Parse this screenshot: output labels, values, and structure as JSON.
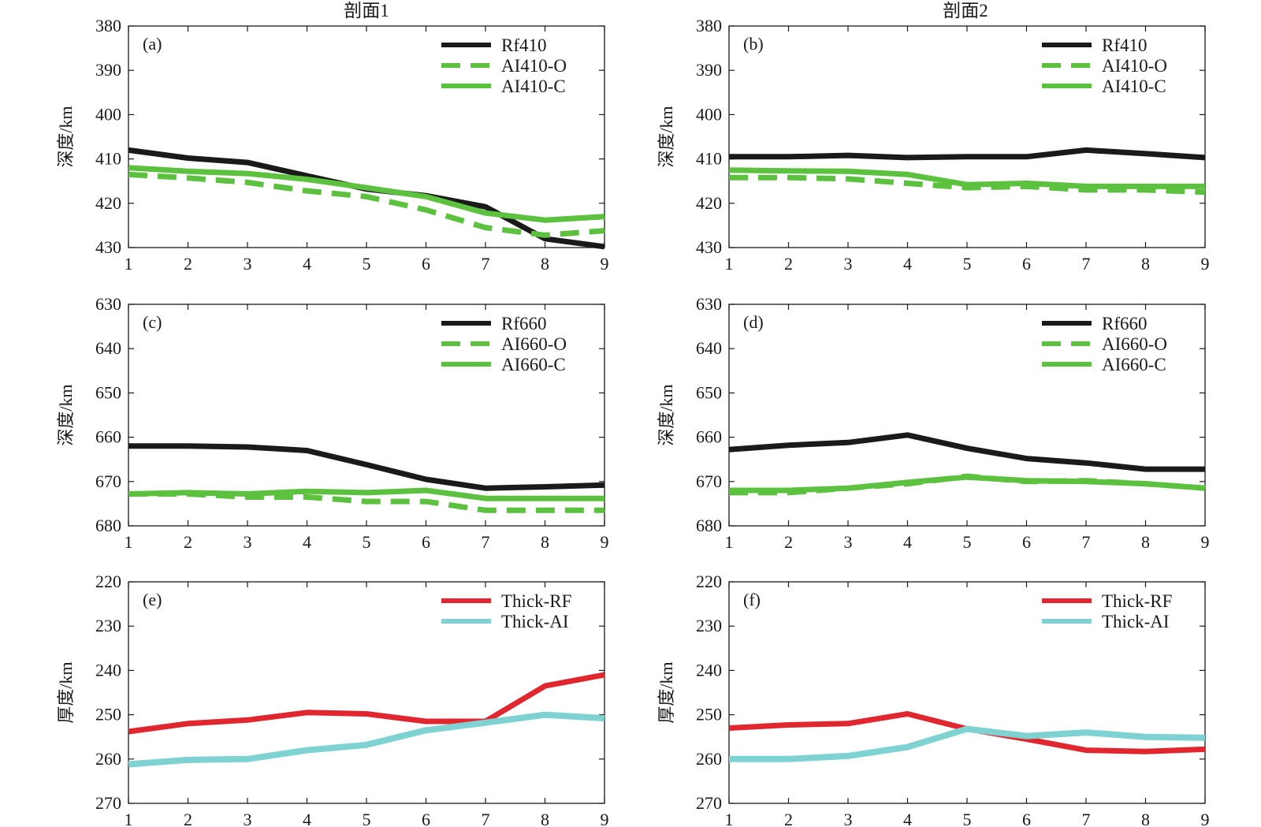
{
  "column_titles": [
    "剖面1",
    "剖面2"
  ],
  "colors": {
    "rf": "#1a1a1a",
    "ai": "#5cc13f",
    "thick_rf": "#e0262e",
    "thick_ai": "#7fd2d2"
  },
  "chart_data": [
    {
      "id": "a",
      "panel_label": "(a)",
      "type": "line",
      "ylabel": "深度/km",
      "ylim": [
        380,
        430
      ],
      "y_inverted": true,
      "yticks": [
        380,
        390,
        400,
        410,
        420,
        430
      ],
      "x": [
        1,
        2,
        3,
        4,
        5,
        6,
        7,
        8,
        9
      ],
      "series": [
        {
          "name": "Rf410",
          "style": "solid",
          "color": "#1a1a1a",
          "values": [
            408,
            409.8,
            410.8,
            413.8,
            416.8,
            418.3,
            420.8,
            428,
            429.8
          ]
        },
        {
          "name": "AI410-O",
          "style": "dashed",
          "color": "#5cc13f",
          "values": [
            413.5,
            414.3,
            415.3,
            417.2,
            418.5,
            421.5,
            425.5,
            427.2,
            426.2
          ]
        },
        {
          "name": "AI410-C",
          "style": "solid",
          "color": "#5cc13f",
          "values": [
            412,
            412.8,
            413.3,
            414.6,
            416.5,
            418.5,
            422.2,
            423.8,
            423
          ]
        }
      ]
    },
    {
      "id": "b",
      "panel_label": "(b)",
      "type": "line",
      "ylabel": "深度/km",
      "ylim": [
        380,
        430
      ],
      "y_inverted": true,
      "yticks": [
        380,
        390,
        400,
        410,
        420,
        430
      ],
      "x": [
        1,
        2,
        3,
        4,
        5,
        6,
        7,
        8,
        9
      ],
      "series": [
        {
          "name": "Rf410",
          "style": "solid",
          "color": "#1a1a1a",
          "values": [
            409.5,
            409.5,
            409.2,
            409.7,
            409.5,
            409.5,
            408,
            408.8,
            409.7
          ]
        },
        {
          "name": "AI410-O",
          "style": "dashed",
          "color": "#5cc13f",
          "values": [
            414.2,
            414.2,
            414.5,
            415.5,
            416.5,
            416.2,
            417,
            417,
            417.5
          ]
        },
        {
          "name": "AI410-C",
          "style": "solid",
          "color": "#5cc13f",
          "values": [
            412.5,
            412.7,
            412.8,
            413.5,
            415.8,
            415.5,
            416.2,
            416.2,
            416.2
          ]
        }
      ]
    },
    {
      "id": "c",
      "panel_label": "(c)",
      "type": "line",
      "ylabel": "深度/km",
      "ylim": [
        630,
        680
      ],
      "y_inverted": true,
      "yticks": [
        630,
        640,
        650,
        660,
        670,
        680
      ],
      "x": [
        1,
        2,
        3,
        4,
        5,
        6,
        7,
        8,
        9
      ],
      "series": [
        {
          "name": "Rf660",
          "style": "solid",
          "color": "#1a1a1a",
          "values": [
            662,
            662,
            662.2,
            663,
            666.2,
            669.5,
            671.5,
            671.2,
            670.8
          ]
        },
        {
          "name": "AI660-O",
          "style": "dashed",
          "color": "#5cc13f",
          "values": [
            672.8,
            672.8,
            673.5,
            673.5,
            674.5,
            674.5,
            676.5,
            676.5,
            676.5
          ]
        },
        {
          "name": "AI660-C",
          "style": "solid",
          "color": "#5cc13f",
          "values": [
            672.8,
            672.5,
            672.8,
            672.2,
            672.5,
            672,
            673.8,
            673.8,
            673.8
          ]
        }
      ]
    },
    {
      "id": "d",
      "panel_label": "(d)",
      "type": "line",
      "ylabel": "深度/km",
      "ylim": [
        630,
        680
      ],
      "y_inverted": true,
      "yticks": [
        630,
        640,
        650,
        660,
        670,
        680
      ],
      "x": [
        1,
        2,
        3,
        4,
        5,
        6,
        7,
        8,
        9
      ],
      "series": [
        {
          "name": "Rf660",
          "style": "solid",
          "color": "#1a1a1a",
          "values": [
            662.8,
            661.8,
            661.2,
            659.5,
            662.5,
            664.8,
            665.8,
            667.2,
            667.2
          ]
        },
        {
          "name": "AI660-O",
          "style": "dashed",
          "color": "#5cc13f",
          "values": [
            672.5,
            672.5,
            671.5,
            670.5,
            668.8,
            670,
            669.8,
            670.5,
            671.5
          ]
        },
        {
          "name": "AI660-C",
          "style": "solid",
          "color": "#5cc13f",
          "values": [
            672,
            672,
            671.5,
            670.2,
            669,
            669.8,
            670,
            670.5,
            671.5
          ]
        }
      ]
    },
    {
      "id": "e",
      "panel_label": "(e)",
      "type": "line",
      "ylabel": "厚度/km",
      "ylim": [
        220,
        270
      ],
      "y_inverted": true,
      "yticks": [
        220,
        230,
        240,
        250,
        260,
        270
      ],
      "x": [
        1,
        2,
        3,
        4,
        5,
        6,
        7,
        8,
        9
      ],
      "series": [
        {
          "name": "Thick-RF",
          "style": "solid",
          "color": "#e0262e",
          "values": [
            253.8,
            252,
            251.2,
            249.5,
            249.8,
            251.5,
            251.5,
            243.5,
            241
          ]
        },
        {
          "name": "Thick-AI",
          "style": "solid",
          "color": "#7fd2d2",
          "values": [
            261.2,
            260.2,
            260,
            258,
            256.8,
            253.5,
            251.8,
            250,
            250.8
          ]
        }
      ]
    },
    {
      "id": "f",
      "panel_label": "(f)",
      "type": "line",
      "ylabel": "厚度/km",
      "ylim": [
        220,
        270
      ],
      "y_inverted": true,
      "yticks": [
        220,
        230,
        240,
        250,
        260,
        270
      ],
      "x": [
        1,
        2,
        3,
        4,
        5,
        6,
        7,
        8,
        9
      ],
      "series": [
        {
          "name": "Thick-RF",
          "style": "solid",
          "color": "#e0262e",
          "values": [
            253,
            252.3,
            252,
            249.8,
            253.2,
            255.5,
            258,
            258.3,
            257.8
          ]
        },
        {
          "name": "Thick-AI",
          "style": "solid",
          "color": "#7fd2d2",
          "values": [
            260,
            260,
            259.3,
            257.3,
            253.2,
            254.8,
            254,
            255,
            255.2
          ]
        }
      ]
    }
  ]
}
